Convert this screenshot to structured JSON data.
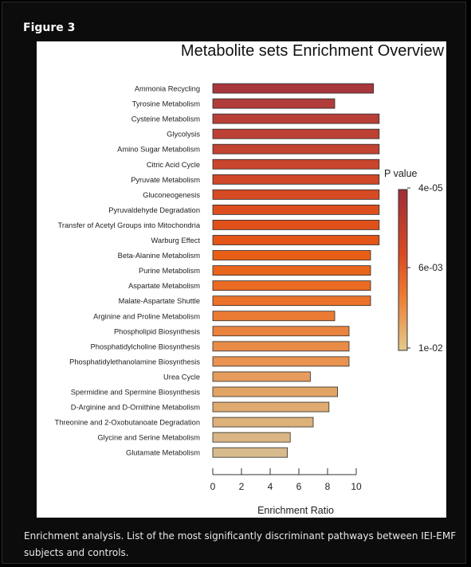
{
  "figure_label": "Figure 3",
  "caption": "Enrichment analysis. List of the most significantly discriminant pathways between IEI-EMF subjects and controls.",
  "chart_data": {
    "type": "bar",
    "orientation": "horizontal",
    "title": "Metabolite sets Enrichment Overview",
    "xlabel": "Enrichment Ratio",
    "ylabel": "",
    "xlim": [
      0,
      11.5
    ],
    "xticks": [
      0,
      2,
      4,
      6,
      8,
      10
    ],
    "grid": false,
    "categories": [
      "Ammonia Recycling",
      "Tyrosine Metabolism",
      "Cysteine Metabolism",
      "Glycolysis",
      "Amino Sugar Metabolism",
      "Citric Acid Cycle",
      "Pyruvate Metabolism",
      "Gluconeogenesis",
      "Pyruvaldehyde Degradation",
      "Transfer of Acetyl Groups into Mitochondria",
      "Warburg Effect",
      "Beta-Alanine Metabolism",
      "Purine Metabolism",
      "Aspartate Metabolism",
      "Malate-Aspartate Shuttle",
      "Arginine and Proline Metabolism",
      "Phospholipid Biosynthesis",
      "Phosphatidylcholine Biosynthesis",
      "Phosphatidylethanolamine Biosynthesis",
      "Urea Cycle",
      "Spermidine and Spermine Biosynthesis",
      "D-Arginine and D-Ornithine Metabolism",
      "Threonine and 2-Oxobutanoate Degradation",
      "Glycine and Serine Metabolism",
      "Glutamate Metabolism"
    ],
    "values": [
      11.2,
      8.5,
      11.6,
      11.6,
      11.6,
      11.6,
      11.6,
      11.6,
      11.6,
      11.6,
      11.6,
      11.0,
      11.0,
      11.0,
      11.0,
      8.5,
      9.5,
      9.5,
      9.5,
      6.8,
      8.7,
      8.1,
      7.0,
      5.4,
      5.2
    ],
    "bar_colors": [
      "#a8373d",
      "#b03d3a",
      "#b73f37",
      "#bc4134",
      "#c14331",
      "#c9452d",
      "#d04828",
      "#d64b23",
      "#dc4e1e",
      "#e0511a",
      "#e45417",
      "#e85e17",
      "#e9651c",
      "#ea6b22",
      "#eb7228",
      "#eb7b33",
      "#ea833e",
      "#e98c47",
      "#e89350",
      "#e59c5c",
      "#e2a465",
      "#e0ab70",
      "#ddb17a",
      "#dab684",
      "#d8bb8c"
    ],
    "legend": {
      "title": "P value",
      "labels": [
        "4e-05",
        "6e-03",
        "1e-02"
      ],
      "gradient_colors": [
        "#9e2f38",
        "#d84a24",
        "#ec7a31",
        "#e3c98c"
      ],
      "position": "right"
    }
  }
}
